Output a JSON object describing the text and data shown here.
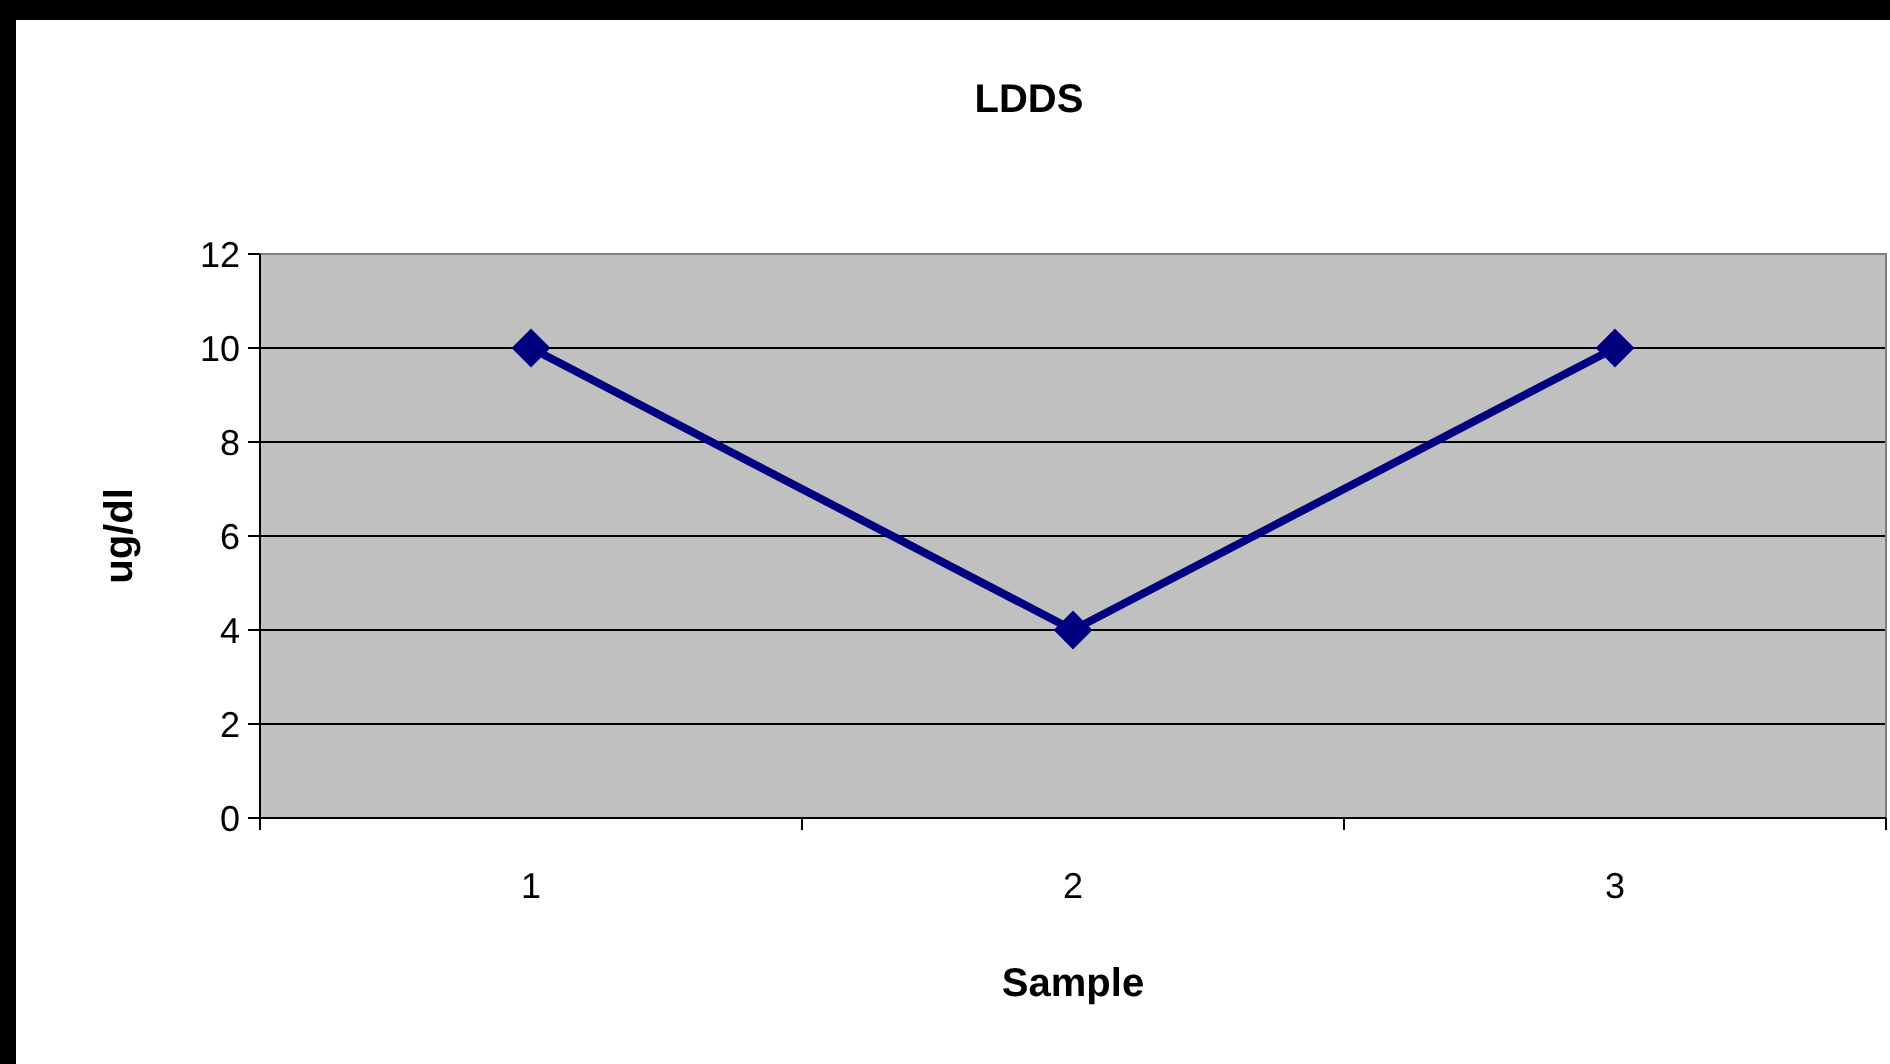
{
  "chart_data": {
    "type": "line",
    "title": "LDDS",
    "xlabel": "Sample",
    "ylabel": "ug/dl",
    "categories": [
      "1",
      "2",
      "3"
    ],
    "series": [
      {
        "color": "#000080",
        "values": [
          10,
          4,
          10
        ]
      }
    ],
    "ylim": [
      0,
      12
    ],
    "yticks": [
      0,
      2,
      4,
      6,
      8,
      10,
      12
    ],
    "grid": "y",
    "marker": "diamond",
    "line_style": "solid"
  }
}
